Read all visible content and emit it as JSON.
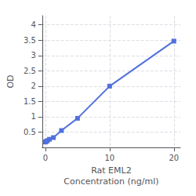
{
  "chart_data": {
    "type": "line",
    "xlabel": "Rat EML2\nConcentration (ng/ml)",
    "ylabel": "OD",
    "x": [
      0,
      0.156,
      0.3125,
      0.625,
      1.25,
      2.5,
      5,
      10,
      20
    ],
    "values": [
      0.175,
      0.2,
      0.22,
      0.265,
      0.32,
      0.55,
      0.95,
      2.0,
      3.47
    ],
    "marker": "square",
    "xlim": [
      -0.5,
      21
    ],
    "ylim": [
      0,
      4.3
    ],
    "xticks": [
      0,
      10,
      20
    ],
    "yticks": [
      0.5,
      1,
      1.5,
      2,
      2.5,
      3,
      3.5,
      4
    ],
    "grid": true
  }
}
